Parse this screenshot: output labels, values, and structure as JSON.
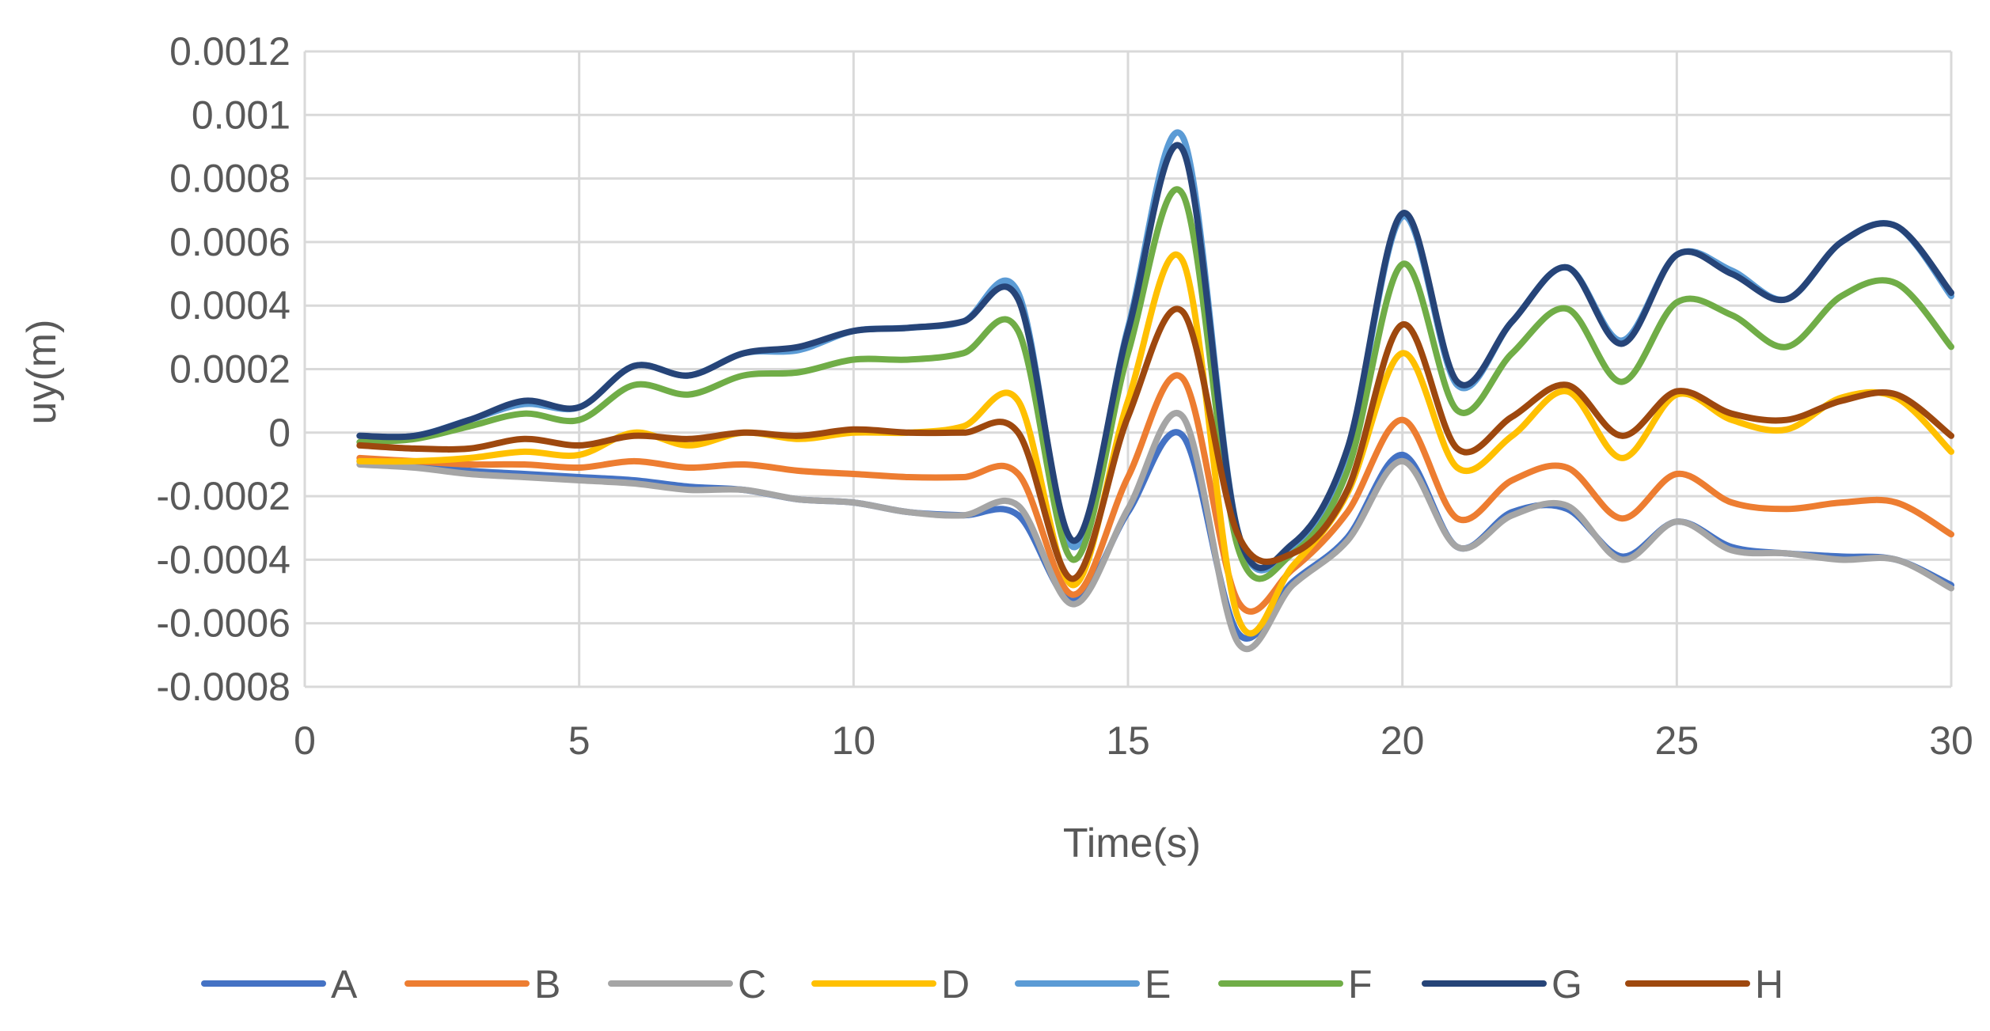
{
  "chart_data": {
    "type": "line",
    "title": "",
    "xlabel": "Time(s)",
    "ylabel": "uy(m)",
    "xlim": [
      0,
      30
    ],
    "ylim": [
      -0.0008,
      0.0012
    ],
    "grid": true,
    "legend_position": "bottom",
    "x_ticks": [
      {
        "value": 0,
        "label": "0"
      },
      {
        "value": 5,
        "label": "5"
      },
      {
        "value": 10,
        "label": "10"
      },
      {
        "value": 15,
        "label": "15"
      },
      {
        "value": 20,
        "label": "20"
      },
      {
        "value": 25,
        "label": "25"
      },
      {
        "value": 30,
        "label": "30"
      }
    ],
    "y_ticks": [
      {
        "value": 0.0012,
        "label": "0.0012"
      },
      {
        "value": 0.001,
        "label": "0.001"
      },
      {
        "value": 0.0008,
        "label": "0.0008"
      },
      {
        "value": 0.0006,
        "label": "0.0006"
      },
      {
        "value": 0.0004,
        "label": "0.0004"
      },
      {
        "value": 0.0002,
        "label": "0.0002"
      },
      {
        "value": 0,
        "label": "0"
      },
      {
        "value": -0.0002,
        "label": "-0.0002"
      },
      {
        "value": -0.0004,
        "label": "-0.0004"
      },
      {
        "value": -0.0006,
        "label": "-0.0006"
      },
      {
        "value": -0.0008,
        "label": "-0.0008"
      }
    ],
    "x": [
      1,
      2,
      3,
      4,
      5,
      6,
      7,
      8,
      9,
      10,
      11,
      12,
      13,
      14,
      15,
      16,
      17,
      18,
      19,
      20,
      21,
      22,
      23,
      24,
      25,
      26,
      27,
      28,
      29,
      30
    ],
    "series": [
      {
        "name": "A",
        "color": "#4472C4",
        "values": [
          -9e-05,
          -0.0001,
          -0.00012,
          -0.00013,
          -0.00014,
          -0.00015,
          -0.00017,
          -0.00018,
          -0.00021,
          -0.00022,
          -0.00025,
          -0.00026,
          -0.00026,
          -0.00053,
          -0.00025,
          -1e-05,
          -0.00063,
          -0.00047,
          -0.00033,
          -7e-05,
          -0.00036,
          -0.00025,
          -0.00024,
          -0.00039,
          -0.00028,
          -0.00036,
          -0.00038,
          -0.00039,
          -0.0004,
          -0.00048
        ]
      },
      {
        "name": "B",
        "color": "#ED7D31",
        "values": [
          -8e-05,
          -9e-05,
          -0.0001,
          -0.0001,
          -0.00011,
          -9e-05,
          -0.00011,
          -0.0001,
          -0.00012,
          -0.00013,
          -0.00014,
          -0.00014,
          -0.00013,
          -0.00051,
          -0.00014,
          0.00017,
          -0.00053,
          -0.00043,
          -0.00025,
          4e-05,
          -0.00027,
          -0.00015,
          -0.00011,
          -0.00027,
          -0.00013,
          -0.00022,
          -0.00024,
          -0.00022,
          -0.00022,
          -0.00032
        ]
      },
      {
        "name": "C",
        "color": "#A5A5A5",
        "values": [
          -0.0001,
          -0.00011,
          -0.00013,
          -0.00014,
          -0.00015,
          -0.00016,
          -0.00018,
          -0.00018,
          -0.00021,
          -0.00022,
          -0.00025,
          -0.00026,
          -0.00023,
          -0.00054,
          -0.00024,
          5e-05,
          -0.00066,
          -0.00048,
          -0.00034,
          -9e-05,
          -0.00036,
          -0.00026,
          -0.00023,
          -0.0004,
          -0.00028,
          -0.00037,
          -0.00038,
          -0.0004,
          -0.0004,
          -0.00049
        ]
      },
      {
        "name": "D",
        "color": "#FFC000",
        "values": [
          -9e-05,
          -9e-05,
          -8e-05,
          -6e-05,
          -7e-05,
          0.0,
          -4e-05,
          0.0,
          -2e-05,
          0.0,
          0.0,
          2e-05,
          0.0001,
          -0.00048,
          0.0001,
          0.00054,
          -0.00058,
          -0.00042,
          -0.00019,
          0.00025,
          -0.00011,
          -1e-05,
          0.00013,
          -8e-05,
          0.00012,
          4e-05,
          1e-05,
          0.00011,
          0.00011,
          -6e-05
        ]
      },
      {
        "name": "E",
        "color": "#5B9BD5",
        "values": [
          -1e-05,
          -1e-05,
          4e-05,
          9e-05,
          8e-05,
          0.00021,
          0.00018,
          0.00025,
          0.00026,
          0.00032,
          0.00033,
          0.00035,
          0.00044,
          -0.00036,
          0.00033,
          0.00093,
          -0.00031,
          -0.00036,
          -6e-05,
          0.00068,
          0.00015,
          0.00035,
          0.00052,
          0.00029,
          0.00056,
          0.00051,
          0.00042,
          0.0006,
          0.00065,
          0.00043
        ]
      },
      {
        "name": "F",
        "color": "#70AD47",
        "values": [
          -3e-05,
          -2e-05,
          2e-05,
          6e-05,
          4e-05,
          0.00015,
          0.00012,
          0.00018,
          0.00019,
          0.00023,
          0.00023,
          0.00025,
          0.00032,
          -0.0004,
          0.00025,
          0.00075,
          -0.00036,
          -0.00038,
          -0.00012,
          0.00053,
          7e-05,
          0.00025,
          0.00039,
          0.00016,
          0.00041,
          0.00037,
          0.00027,
          0.00043,
          0.00047,
          0.00027
        ]
      },
      {
        "name": "G",
        "color": "#264478",
        "values": [
          -1e-05,
          -1e-05,
          4e-05,
          0.0001,
          8e-05,
          0.00021,
          0.00018,
          0.00025,
          0.00027,
          0.00032,
          0.00033,
          0.00035,
          0.00042,
          -0.00034,
          0.00032,
          0.00089,
          -0.00031,
          -0.00035,
          -5e-05,
          0.00069,
          0.00016,
          0.00035,
          0.00052,
          0.00028,
          0.00056,
          0.0005,
          0.00042,
          0.0006,
          0.00065,
          0.00044
        ]
      },
      {
        "name": "H",
        "color": "#9E480E",
        "values": [
          -4e-05,
          -5e-05,
          -5e-05,
          -2e-05,
          -4e-05,
          -1e-05,
          -2e-05,
          0.0,
          -1e-05,
          1e-05,
          0.0,
          0.0,
          0.0,
          -0.00046,
          5e-05,
          0.00038,
          -0.00032,
          -0.00038,
          -0.00018,
          0.00034,
          -5e-05,
          5e-05,
          0.00015,
          -1e-05,
          0.00013,
          6e-05,
          4e-05,
          0.0001,
          0.00012,
          -1e-05
        ]
      }
    ]
  }
}
